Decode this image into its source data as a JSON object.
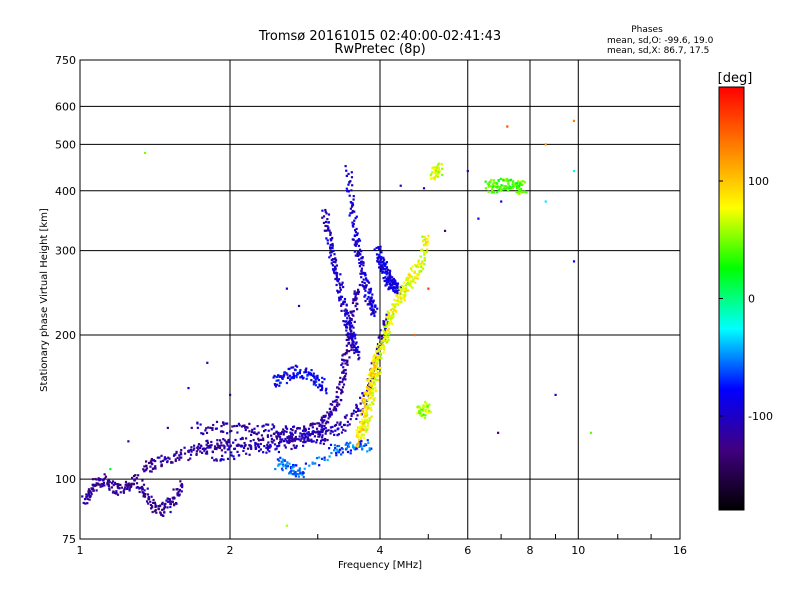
{
  "chart_data": {
    "type": "scatter",
    "title": "Tromsø 20161015 02:40:00-02:41:43",
    "subtitle": "RwPretec (8p)",
    "xlabel": "Frequency [MHz]",
    "ylabel": "Stationary phase Virtual Height [km]",
    "x_scale": "log",
    "y_scale": "log",
    "xlim": [
      1,
      16
    ],
    "ylim": [
      75,
      750
    ],
    "x_ticks": [
      1,
      2,
      4,
      6,
      8,
      10,
      16
    ],
    "x_tick_labels": [
      "1",
      "2",
      "4",
      "6",
      "8",
      "10",
      "16"
    ],
    "y_ticks": [
      75,
      100,
      200,
      300,
      400,
      500,
      600,
      750
    ],
    "y_tick_labels": [
      "75",
      "100",
      "200",
      "300",
      "400",
      "500",
      "600",
      "750"
    ],
    "grid": true,
    "phase_info": {
      "header": "Phases",
      "line_o": "mean, sd,O: -99.6, 19.0",
      "line_x": "mean, sd,X: 86.7, 17.5"
    },
    "colorbar": {
      "label": "[deg]",
      "range": [
        -180,
        180
      ],
      "ticks": [
        100,
        0,
        -100
      ],
      "tick_labels": [
        "100",
        "0",
        "-100"
      ],
      "colormap": [
        "#ff0000",
        "#ff8000",
        "#ffff00",
        "#00ff00",
        "#00ffff",
        "#0000ff",
        "#400080",
        "#000000"
      ]
    },
    "traces": [
      {
        "phase": -120,
        "points": [
          [
            1.02,
            90
          ],
          [
            1.05,
            95
          ],
          [
            1.08,
            98
          ],
          [
            1.12,
            100
          ],
          [
            1.15,
            97
          ],
          [
            1.2,
            95
          ],
          [
            1.25,
            97
          ],
          [
            1.3,
            100
          ],
          [
            1.35,
            93
          ],
          [
            1.4,
            88
          ],
          [
            1.45,
            86
          ],
          [
            1.5,
            88
          ],
          [
            1.55,
            92
          ],
          [
            1.6,
            97
          ]
        ]
      },
      {
        "phase": -115,
        "points": [
          [
            1.35,
            105
          ],
          [
            1.4,
            108
          ],
          [
            1.5,
            110
          ],
          [
            1.6,
            112
          ],
          [
            1.7,
            115
          ],
          [
            1.8,
            117
          ],
          [
            1.9,
            118
          ],
          [
            2.0,
            118
          ],
          [
            2.2,
            119
          ],
          [
            2.4,
            121
          ],
          [
            2.6,
            123
          ],
          [
            2.8,
            125
          ],
          [
            3.0,
            128
          ],
          [
            3.1,
            132
          ],
          [
            3.2,
            138
          ],
          [
            3.3,
            148
          ],
          [
            3.35,
            160
          ],
          [
            3.4,
            175
          ],
          [
            3.45,
            190
          ],
          [
            3.5,
            210
          ],
          [
            3.55,
            230
          ],
          [
            3.6,
            250
          ]
        ]
      },
      {
        "phase": -110,
        "points": [
          [
            1.7,
            128
          ],
          [
            1.9,
            128
          ],
          [
            2.1,
            128
          ],
          [
            2.3,
            127
          ],
          [
            2.5,
            126
          ],
          [
            2.7,
            125
          ],
          [
            2.9,
            123
          ],
          [
            3.1,
            122
          ]
        ]
      },
      {
        "phase": -105,
        "points": [
          [
            1.8,
            112
          ],
          [
            2.0,
            113
          ],
          [
            2.2,
            115
          ],
          [
            2.4,
            117
          ],
          [
            2.6,
            118
          ],
          [
            2.8,
            120
          ],
          [
            3.0,
            123
          ],
          [
            3.2,
            126
          ],
          [
            3.4,
            130
          ],
          [
            3.6,
            138
          ],
          [
            3.75,
            150
          ],
          [
            3.85,
            165
          ],
          [
            3.95,
            180
          ],
          [
            4.05,
            200
          ],
          [
            4.1,
            215
          ]
        ]
      },
      {
        "phase": -100,
        "points": [
          [
            3.1,
            360
          ],
          [
            3.15,
            330
          ],
          [
            3.2,
            300
          ],
          [
            3.25,
            280
          ],
          [
            3.3,
            260
          ],
          [
            3.35,
            240
          ],
          [
            3.4,
            225
          ],
          [
            3.45,
            210
          ],
          [
            3.5,
            200
          ],
          [
            3.55,
            190
          ],
          [
            3.6,
            183
          ]
        ]
      },
      {
        "phase": -95,
        "points": [
          [
            3.45,
            440
          ],
          [
            3.5,
            380
          ],
          [
            3.55,
            340
          ],
          [
            3.6,
            310
          ],
          [
            3.65,
            290
          ],
          [
            3.7,
            270
          ],
          [
            3.75,
            255
          ],
          [
            3.8,
            240
          ],
          [
            3.85,
            230
          ],
          [
            3.9,
            225
          ]
        ]
      },
      {
        "phase": -90,
        "points": [
          [
            3.95,
            300
          ],
          [
            4.0,
            290
          ],
          [
            4.05,
            280
          ],
          [
            4.1,
            270
          ],
          [
            4.15,
            262
          ],
          [
            4.2,
            258
          ],
          [
            4.25,
            255
          ],
          [
            4.3,
            252
          ],
          [
            4.35,
            250
          ]
        ]
      },
      {
        "phase": -85,
        "points": [
          [
            2.45,
            160
          ],
          [
            2.55,
            163
          ],
          [
            2.65,
            167
          ],
          [
            2.75,
            168
          ],
          [
            2.9,
            165
          ],
          [
            3.0,
            160
          ],
          [
            3.1,
            155
          ]
        ]
      },
      {
        "phase": -60,
        "points": [
          [
            2.5,
            108
          ],
          [
            2.6,
            106
          ],
          [
            2.7,
            105
          ],
          [
            2.8,
            103
          ],
          [
            3.2,
            115
          ],
          [
            3.4,
            116
          ],
          [
            3.6,
            117
          ],
          [
            3.8,
            118
          ]
        ]
      },
      {
        "phase": 75,
        "points": [
          [
            3.7,
            125
          ],
          [
            3.75,
            130
          ],
          [
            3.8,
            140
          ],
          [
            3.85,
            150
          ],
          [
            3.9,
            160
          ],
          [
            3.95,
            170
          ],
          [
            4.0,
            180
          ],
          [
            4.05,
            190
          ],
          [
            4.1,
            200
          ],
          [
            4.15,
            210
          ],
          [
            4.2,
            220
          ],
          [
            4.3,
            230
          ],
          [
            4.4,
            240
          ],
          [
            4.5,
            250
          ],
          [
            4.6,
            260
          ],
          [
            4.7,
            270
          ],
          [
            4.8,
            280
          ],
          [
            4.9,
            300
          ],
          [
            4.95,
            320
          ]
        ]
      },
      {
        "phase": 90,
        "points": [
          [
            3.6,
            120
          ],
          [
            3.65,
            125
          ],
          [
            3.7,
            135
          ],
          [
            3.75,
            145
          ],
          [
            3.8,
            155
          ],
          [
            3.85,
            165
          ],
          [
            3.9,
            175
          ],
          [
            3.95,
            185
          ]
        ]
      },
      {
        "phase": 60,
        "points": [
          [
            4.8,
            140
          ],
          [
            4.9,
            138
          ],
          [
            5.0,
            142
          ]
        ]
      },
      {
        "phase": 40,
        "points": [
          [
            6.6,
            410
          ],
          [
            6.8,
            408
          ],
          [
            7.0,
            412
          ],
          [
            7.2,
            415
          ],
          [
            7.4,
            410
          ],
          [
            7.6,
            405
          ],
          [
            7.8,
            410
          ]
        ]
      },
      {
        "phase": 70,
        "points": [
          [
            5.1,
            430
          ],
          [
            5.2,
            440
          ],
          [
            5.3,
            445
          ]
        ]
      }
    ],
    "scatter_points": [
      {
        "x": 1.35,
        "y": 480,
        "phase": 50
      },
      {
        "x": 7.2,
        "y": 545,
        "phase": 150
      },
      {
        "x": 9.8,
        "y": 560,
        "phase": 130
      },
      {
        "x": 8.6,
        "y": 500,
        "phase": 120
      },
      {
        "x": 8.6,
        "y": 380,
        "phase": -30
      },
      {
        "x": 9.8,
        "y": 440,
        "phase": -20
      },
      {
        "x": 9.8,
        "y": 285,
        "phase": -80
      },
      {
        "x": 9.0,
        "y": 150,
        "phase": -95
      },
      {
        "x": 10.6,
        "y": 125,
        "phase": 45
      },
      {
        "x": 6.9,
        "y": 125,
        "phase": -130
      },
      {
        "x": 6.0,
        "y": 440,
        "phase": -120
      },
      {
        "x": 7.0,
        "y": 380,
        "phase": -100
      },
      {
        "x": 4.9,
        "y": 405,
        "phase": -110
      },
      {
        "x": 5.0,
        "y": 250,
        "phase": 160
      },
      {
        "x": 5.4,
        "y": 330,
        "phase": -130
      },
      {
        "x": 2.6,
        "y": 80,
        "phase": 60
      },
      {
        "x": 1.15,
        "y": 105,
        "phase": 20
      },
      {
        "x": 1.65,
        "y": 155,
        "phase": -90
      },
      {
        "x": 2.0,
        "y": 150,
        "phase": -115
      },
      {
        "x": 1.8,
        "y": 175,
        "phase": -110
      },
      {
        "x": 2.6,
        "y": 250,
        "phase": -100
      },
      {
        "x": 2.75,
        "y": 230,
        "phase": -110
      },
      {
        "x": 4.4,
        "y": 410,
        "phase": -100
      },
      {
        "x": 6.3,
        "y": 350,
        "phase": -80
      },
      {
        "x": 1.5,
        "y": 128,
        "phase": -120
      },
      {
        "x": 1.25,
        "y": 120,
        "phase": -110
      },
      {
        "x": 4.7,
        "y": 200,
        "phase": 140
      }
    ]
  }
}
